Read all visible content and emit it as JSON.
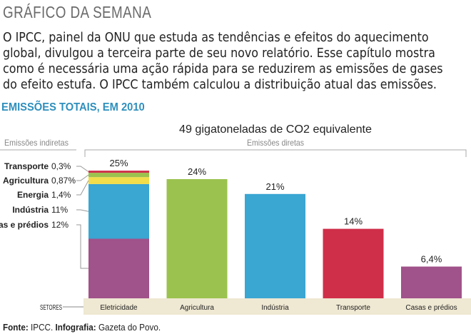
{
  "header": {
    "title": "GRÁFICO DA SEMANA"
  },
  "intro": {
    "lines": [
      "O IPCC, painel da ONU que estuda as tendências e efeitos do aquecimento",
      "global, divulgou a terceira parte de seu novo relatório. Esse capítulo mostra",
      "como é necessária uma ação rápida para se reduzirem as emissões de gases",
      "do efeito estufa. O IPCC também calculou a distribuição atual das emissões."
    ]
  },
  "section": {
    "title": "EMISSÕES TOTAIS, EM 2010"
  },
  "chart_data": {
    "type": "bar",
    "title": "49 gigatoneladas de CO2 equivalente",
    "indirect_label": "Emissões indiretas",
    "direct_label": "Emissões diretas",
    "sectors_label": "SETORES",
    "ylim": [
      0,
      28
    ],
    "categories": [
      "Eletricidade",
      "Agricultura",
      "Indústria",
      "Transporte",
      "Casas e prédios"
    ],
    "values": [
      25,
      24,
      21,
      14,
      6.4
    ],
    "value_labels": [
      "25%",
      "24%",
      "21%",
      "14%",
      "6,4%"
    ],
    "colors": [
      "#a0528a",
      "#9bc24e",
      "#3aa6d2",
      "#cf2f49",
      "#a0528a"
    ],
    "stacked_first_bar": [
      {
        "name": "Casas e prédios",
        "value": 12,
        "label": "12%",
        "color": "#a0528a"
      },
      {
        "name": "Indústria",
        "value": 11,
        "label": "11%",
        "color": "#3aa6d2"
      },
      {
        "name": "Energia",
        "value": 1.4,
        "label": "1,4%",
        "color": "#f2dd4a"
      },
      {
        "name": "Agricultura",
        "value": 0.87,
        "label": "0,87%",
        "color": "#9bc24e"
      },
      {
        "name": "Transporte",
        "value": 0.3,
        "label": "0,3%",
        "color": "#cf2f49"
      }
    ]
  },
  "footer": {
    "source_label": "Fonte:",
    "source_value": "IPCC.",
    "infographic_label": "Infografia:",
    "infographic_value": "Gazeta do Povo."
  }
}
